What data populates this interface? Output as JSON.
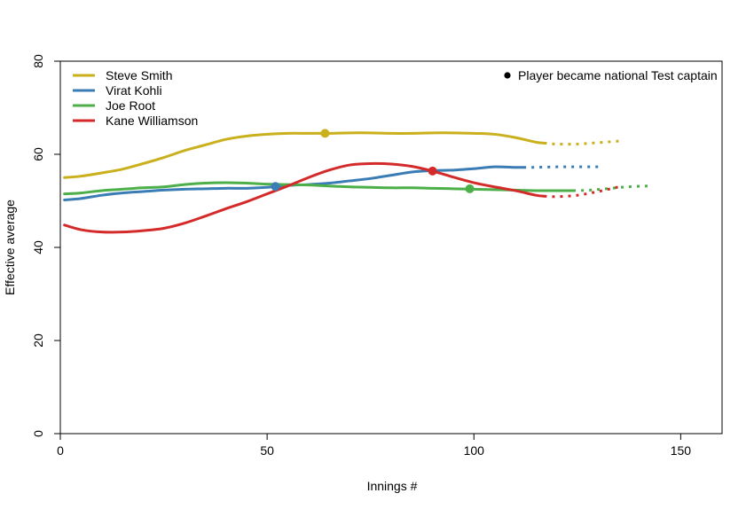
{
  "chart_data": {
    "type": "line",
    "title": "",
    "xlabel": "Innings #",
    "ylabel": "Effective average",
    "xlim": [
      0,
      160
    ],
    "ylim": [
      0,
      80
    ],
    "x_ticks": [
      0,
      50,
      100,
      150
    ],
    "y_ticks": [
      0,
      20,
      40,
      60,
      80
    ],
    "grid": false,
    "legend_position": "top-left",
    "marker_note": "Player became national Test captain",
    "series": [
      {
        "name": "Steve Smith",
        "color": "#C9B01C",
        "points": [
          [
            1,
            55.0
          ],
          [
            5,
            55.3
          ],
          [
            10,
            56.0
          ],
          [
            15,
            56.8
          ],
          [
            20,
            58.0
          ],
          [
            25,
            59.3
          ],
          [
            30,
            60.8
          ],
          [
            35,
            62.0
          ],
          [
            40,
            63.2
          ],
          [
            45,
            63.9
          ],
          [
            50,
            64.3
          ],
          [
            55,
            64.5
          ],
          [
            60,
            64.5
          ],
          [
            65,
            64.5
          ],
          [
            70,
            64.6
          ],
          [
            75,
            64.6
          ],
          [
            80,
            64.5
          ],
          [
            85,
            64.5
          ],
          [
            90,
            64.6
          ],
          [
            95,
            64.6
          ],
          [
            100,
            64.5
          ],
          [
            105,
            64.3
          ],
          [
            110,
            63.6
          ],
          [
            115,
            62.6
          ],
          [
            117,
            62.4
          ]
        ],
        "projection": [
          [
            117,
            62.4
          ],
          [
            120,
            62.2
          ],
          [
            125,
            62.2
          ],
          [
            130,
            62.5
          ],
          [
            136,
            62.9
          ]
        ],
        "captain_point": [
          64,
          64.5
        ]
      },
      {
        "name": "Virat Kohli",
        "color": "#3A7DB5",
        "points": [
          [
            1,
            50.2
          ],
          [
            5,
            50.5
          ],
          [
            10,
            51.2
          ],
          [
            15,
            51.7
          ],
          [
            20,
            52.0
          ],
          [
            25,
            52.3
          ],
          [
            30,
            52.5
          ],
          [
            35,
            52.6
          ],
          [
            40,
            52.7
          ],
          [
            45,
            52.7
          ],
          [
            50,
            52.9
          ],
          [
            55,
            53.3
          ],
          [
            60,
            53.5
          ],
          [
            65,
            53.8
          ],
          [
            70,
            54.3
          ],
          [
            75,
            54.8
          ],
          [
            80,
            55.5
          ],
          [
            85,
            56.2
          ],
          [
            90,
            56.5
          ],
          [
            95,
            56.6
          ],
          [
            100,
            56.9
          ],
          [
            105,
            57.3
          ],
          [
            110,
            57.2
          ],
          [
            112,
            57.2
          ]
        ],
        "projection": [
          [
            112,
            57.2
          ],
          [
            115,
            57.2
          ],
          [
            120,
            57.3
          ],
          [
            125,
            57.3
          ],
          [
            131,
            57.3
          ]
        ],
        "captain_point": [
          52,
          53.1
        ]
      },
      {
        "name": "Joe Root",
        "color": "#4DAF4A",
        "points": [
          [
            1,
            51.5
          ],
          [
            5,
            51.7
          ],
          [
            10,
            52.2
          ],
          [
            15,
            52.5
          ],
          [
            20,
            52.8
          ],
          [
            25,
            53.0
          ],
          [
            30,
            53.5
          ],
          [
            35,
            53.8
          ],
          [
            40,
            53.9
          ],
          [
            45,
            53.8
          ],
          [
            50,
            53.6
          ],
          [
            55,
            53.5
          ],
          [
            60,
            53.4
          ],
          [
            65,
            53.2
          ],
          [
            70,
            53.0
          ],
          [
            75,
            52.9
          ],
          [
            80,
            52.8
          ],
          [
            85,
            52.8
          ],
          [
            90,
            52.7
          ],
          [
            95,
            52.6
          ],
          [
            100,
            52.5
          ],
          [
            105,
            52.4
          ],
          [
            110,
            52.3
          ],
          [
            115,
            52.2
          ],
          [
            120,
            52.2
          ],
          [
            124,
            52.2
          ]
        ],
        "projection": [
          [
            124,
            52.2
          ],
          [
            128,
            52.3
          ],
          [
            132,
            52.6
          ],
          [
            137,
            53.0
          ],
          [
            142,
            53.2
          ]
        ],
        "captain_point": [
          99,
          52.6
        ]
      },
      {
        "name": "Kane Williamson",
        "color": "#D42A2A",
        "points": [
          [
            1,
            44.8
          ],
          [
            5,
            43.8
          ],
          [
            10,
            43.3
          ],
          [
            15,
            43.3
          ],
          [
            20,
            43.6
          ],
          [
            25,
            44.1
          ],
          [
            30,
            45.2
          ],
          [
            35,
            46.7
          ],
          [
            40,
            48.3
          ],
          [
            45,
            49.8
          ],
          [
            50,
            51.5
          ],
          [
            55,
            53.2
          ],
          [
            60,
            55.0
          ],
          [
            65,
            56.6
          ],
          [
            70,
            57.7
          ],
          [
            75,
            58.0
          ],
          [
            80,
            57.9
          ],
          [
            85,
            57.4
          ],
          [
            90,
            56.4
          ],
          [
            95,
            55.1
          ],
          [
            100,
            53.9
          ],
          [
            105,
            53.0
          ],
          [
            110,
            52.2
          ],
          [
            115,
            51.2
          ],
          [
            117,
            51.0
          ]
        ],
        "projection": [
          [
            117,
            51.0
          ],
          [
            120,
            50.9
          ],
          [
            125,
            51.2
          ],
          [
            130,
            52.0
          ],
          [
            135,
            53.0
          ],
          [
            136,
            53.3
          ]
        ],
        "captain_point": [
          90,
          56.4
        ]
      }
    ]
  }
}
